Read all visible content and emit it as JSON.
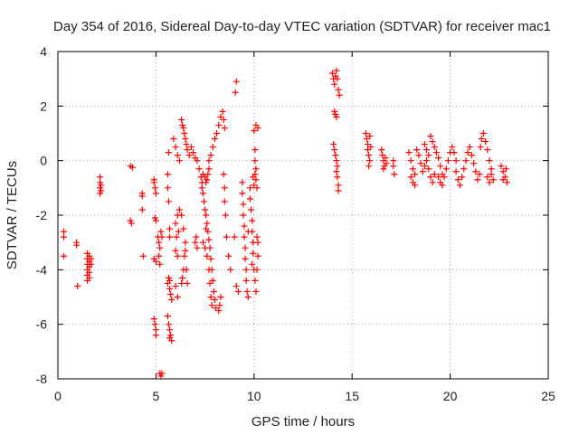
{
  "chart_data": {
    "type": "scatter",
    "title": "Day 354 of 2016, Sidereal Day-to-day VTEC variation (SDTVAR) for receiver mac1",
    "xlabel": "GPS time / hours",
    "ylabel": "SDTVAR / TECUs",
    "xlim": [
      0,
      25
    ],
    "ylim": [
      -8,
      4
    ],
    "xticks": [
      0,
      5,
      10,
      15,
      20,
      25
    ],
    "yticks": [
      -8,
      -6,
      -4,
      -2,
      0,
      2,
      4
    ],
    "grid": true,
    "marker": "+",
    "color": "#ff0000",
    "series": [
      {
        "name": "SDTVAR",
        "points": [
          [
            0.3,
            -2.6
          ],
          [
            0.3,
            -2.8
          ],
          [
            0.3,
            -3.5
          ],
          [
            0.95,
            -3.0
          ],
          [
            0.95,
            -3.1
          ],
          [
            1.0,
            -4.6
          ],
          [
            1.5,
            -3.4
          ],
          [
            1.5,
            -3.6
          ],
          [
            1.5,
            -3.8
          ],
          [
            1.5,
            -4.0
          ],
          [
            1.5,
            -4.2
          ],
          [
            1.5,
            -4.4
          ],
          [
            1.6,
            -3.5
          ],
          [
            1.6,
            -3.7
          ],
          [
            1.6,
            -3.9
          ],
          [
            1.6,
            -4.1
          ],
          [
            1.6,
            -4.3
          ],
          [
            1.7,
            -3.6
          ],
          [
            1.7,
            -3.8
          ],
          [
            2.15,
            -0.6
          ],
          [
            2.15,
            -0.8
          ],
          [
            2.15,
            -1.0
          ],
          [
            2.15,
            -1.2
          ],
          [
            2.2,
            -0.9
          ],
          [
            2.2,
            -1.1
          ],
          [
            3.7,
            -0.2
          ],
          [
            3.8,
            -0.25
          ],
          [
            3.7,
            -2.2
          ],
          [
            3.75,
            -2.3
          ],
          [
            4.3,
            -1.2
          ],
          [
            4.3,
            -1.3
          ],
          [
            4.3,
            -1.8
          ],
          [
            4.35,
            -3.5
          ],
          [
            4.9,
            -0.7
          ],
          [
            4.9,
            -0.8
          ],
          [
            4.95,
            -1.0
          ],
          [
            5.0,
            -1.2
          ],
          [
            4.95,
            -2.1
          ],
          [
            5.0,
            -2.2
          ],
          [
            4.9,
            -3.6
          ],
          [
            5.0,
            -3.7
          ],
          [
            4.9,
            -5.8
          ],
          [
            4.95,
            -6.0
          ],
          [
            5.0,
            -6.2
          ],
          [
            5.0,
            -6.4
          ],
          [
            5.1,
            -2.8
          ],
          [
            5.15,
            -3.0
          ],
          [
            5.2,
            -3.2
          ],
          [
            5.15,
            -3.5
          ],
          [
            5.2,
            -3.8
          ],
          [
            5.25,
            -2.6
          ],
          [
            5.3,
            -2.8
          ],
          [
            5.2,
            -7.8
          ],
          [
            5.25,
            -7.9
          ],
          [
            5.3,
            -7.8
          ],
          [
            5.6,
            -0.5
          ],
          [
            5.6,
            -1.0
          ],
          [
            5.65,
            -1.5
          ],
          [
            5.7,
            -2.8
          ],
          [
            5.7,
            -2.5
          ],
          [
            5.65,
            0.3
          ],
          [
            5.6,
            -4.5
          ],
          [
            5.7,
            -4.7
          ],
          [
            5.75,
            -4.9
          ],
          [
            5.8,
            -5.1
          ],
          [
            5.7,
            -4.4
          ],
          [
            5.65,
            -4.3
          ],
          [
            5.6,
            -5.7
          ],
          [
            5.65,
            -6.0
          ],
          [
            5.7,
            -6.2
          ],
          [
            5.75,
            -6.4
          ],
          [
            5.8,
            -6.6
          ],
          [
            5.7,
            -6.5
          ],
          [
            5.9,
            0.8
          ],
          [
            6.0,
            0.5
          ],
          [
            6.1,
            0.2
          ],
          [
            6.2,
            0.0
          ],
          [
            6.0,
            -2.3
          ],
          [
            6.1,
            -2.0
          ],
          [
            6.2,
            -1.8
          ],
          [
            6.3,
            -2.0
          ],
          [
            6.4,
            -2.5
          ],
          [
            6.5,
            -3.0
          ],
          [
            6.0,
            -3.3
          ],
          [
            6.1,
            -3.5
          ],
          [
            6.0,
            -4.6
          ],
          [
            6.1,
            -5.0
          ],
          [
            6.05,
            -2.8
          ],
          [
            6.15,
            -2.6
          ],
          [
            6.3,
            1.5
          ],
          [
            6.35,
            1.3
          ],
          [
            6.4,
            1.2
          ],
          [
            6.45,
            1.0
          ],
          [
            6.5,
            0.8
          ],
          [
            6.55,
            0.6
          ],
          [
            6.6,
            0.4
          ],
          [
            6.7,
            0.2
          ],
          [
            6.3,
            -4.5
          ],
          [
            6.35,
            -4.3
          ],
          [
            6.4,
            -4.0
          ],
          [
            6.45,
            -3.5
          ],
          [
            6.5,
            -3.3
          ],
          [
            6.55,
            -4.0
          ],
          [
            6.6,
            -4.5
          ],
          [
            6.8,
            0.5
          ],
          [
            6.9,
            0.3
          ],
          [
            7.0,
            0.1
          ],
          [
            7.1,
            0.0
          ],
          [
            7.2,
            -0.3
          ],
          [
            7.0,
            -3.0
          ],
          [
            7.05,
            -2.8
          ],
          [
            7.1,
            -3.2
          ],
          [
            7.3,
            -0.6
          ],
          [
            7.35,
            -0.8
          ],
          [
            7.4,
            -0.5
          ],
          [
            7.5,
            -0.6
          ],
          [
            7.55,
            -0.8
          ],
          [
            7.6,
            -0.7
          ],
          [
            7.65,
            -0.5
          ],
          [
            7.7,
            -0.3
          ],
          [
            7.35,
            -1.0
          ],
          [
            7.4,
            -1.2
          ],
          [
            7.45,
            -1.5
          ],
          [
            7.5,
            -1.8
          ],
          [
            7.55,
            -2.0
          ],
          [
            7.6,
            -2.3
          ],
          [
            7.65,
            -2.6
          ],
          [
            7.7,
            -2.9
          ],
          [
            7.75,
            -3.2
          ],
          [
            7.8,
            -3.6
          ],
          [
            7.85,
            -4.0
          ],
          [
            7.9,
            -4.4
          ],
          [
            7.95,
            -4.8
          ],
          [
            8.0,
            -5.1
          ],
          [
            8.05,
            -5.4
          ],
          [
            7.4,
            -3.0
          ],
          [
            7.5,
            -3.2
          ],
          [
            7.55,
            -2.5
          ],
          [
            7.6,
            -3.5
          ],
          [
            7.7,
            -4.0
          ],
          [
            7.75,
            -4.5
          ],
          [
            7.8,
            -5.0
          ],
          [
            7.85,
            -5.3
          ],
          [
            7.7,
            0.0
          ],
          [
            7.8,
            0.2
          ],
          [
            7.9,
            0.5
          ],
          [
            8.0,
            0.8
          ],
          [
            8.1,
            1.0
          ],
          [
            8.2,
            1.3
          ],
          [
            8.3,
            1.6
          ],
          [
            8.4,
            1.8
          ],
          [
            8.45,
            1.5
          ],
          [
            8.5,
            1.2
          ],
          [
            8.2,
            -5.5
          ],
          [
            8.25,
            -5.3
          ],
          [
            8.3,
            -5.0
          ],
          [
            8.6,
            -2.8
          ],
          [
            8.7,
            -3.5
          ],
          [
            8.8,
            -4.0
          ],
          [
            8.55,
            -2.0
          ],
          [
            8.5,
            -1.5
          ],
          [
            8.5,
            -1.0
          ],
          [
            8.45,
            -0.5
          ],
          [
            9.1,
            2.9
          ],
          [
            9.05,
            2.5
          ],
          [
            9.0,
            -2.8
          ],
          [
            9.1,
            -4.6
          ],
          [
            9.2,
            -4.8
          ],
          [
            9.4,
            -0.8
          ],
          [
            9.4,
            -1.2
          ],
          [
            9.45,
            -1.6
          ],
          [
            9.45,
            -2.0
          ],
          [
            9.5,
            -2.4
          ],
          [
            9.5,
            -2.8
          ],
          [
            9.55,
            -3.2
          ],
          [
            9.55,
            -3.6
          ],
          [
            9.6,
            -4.0
          ],
          [
            9.6,
            -4.4
          ],
          [
            9.65,
            -4.8
          ],
          [
            9.7,
            -5.0
          ],
          [
            9.7,
            -2.6
          ],
          [
            9.8,
            -1.0
          ],
          [
            9.8,
            -1.4
          ],
          [
            9.85,
            -1.8
          ],
          [
            9.9,
            -2.2
          ],
          [
            9.9,
            -2.6
          ],
          [
            9.95,
            -3.0
          ],
          [
            9.95,
            -3.4
          ],
          [
            9.9,
            -3.8
          ],
          [
            10.0,
            -4.0
          ],
          [
            10.05,
            -4.4
          ],
          [
            10.1,
            -4.8
          ],
          [
            9.95,
            -0.6
          ],
          [
            10.0,
            -0.9
          ],
          [
            10.05,
            -0.5
          ],
          [
            10.1,
            -0.7
          ],
          [
            10.15,
            -1.0
          ],
          [
            10.05,
            0.4
          ],
          [
            10.05,
            0.0
          ],
          [
            10.1,
            -0.3
          ],
          [
            10.0,
            1.1
          ],
          [
            10.1,
            1.3
          ],
          [
            10.2,
            1.2
          ],
          [
            10.15,
            -2.8
          ],
          [
            10.2,
            -3.0
          ],
          [
            10.2,
            -3.5
          ],
          [
            10.15,
            -4.0
          ],
          [
            14.0,
            3.2
          ],
          [
            14.05,
            3.0
          ],
          [
            14.1,
            2.8
          ],
          [
            14.15,
            3.1
          ],
          [
            14.2,
            3.3
          ],
          [
            14.25,
            3.0
          ],
          [
            14.3,
            2.6
          ],
          [
            14.35,
            2.4
          ],
          [
            14.1,
            1.8
          ],
          [
            14.15,
            1.7
          ],
          [
            14.2,
            1.6
          ],
          [
            14.05,
            0.6
          ],
          [
            14.1,
            0.4
          ],
          [
            14.15,
            0.2
          ],
          [
            14.2,
            0.0
          ],
          [
            14.25,
            -0.2
          ],
          [
            14.2,
            -0.4
          ],
          [
            14.25,
            -0.6
          ],
          [
            14.3,
            -0.9
          ],
          [
            14.3,
            -1.1
          ],
          [
            15.7,
            1.0
          ],
          [
            15.75,
            0.8
          ],
          [
            15.8,
            0.6
          ],
          [
            15.8,
            0.4
          ],
          [
            15.85,
            0.2
          ],
          [
            15.9,
            0.0
          ],
          [
            15.85,
            -0.2
          ],
          [
            15.9,
            0.9
          ],
          [
            15.95,
            0.5
          ],
          [
            16.5,
            0.4
          ],
          [
            16.55,
            0.2
          ],
          [
            16.6,
            0.0
          ],
          [
            16.65,
            -0.2
          ],
          [
            16.6,
            -0.3
          ],
          [
            16.7,
            0.1
          ],
          [
            16.75,
            -0.1
          ],
          [
            17.1,
            0.0
          ],
          [
            17.1,
            -0.2
          ],
          [
            17.15,
            -0.5
          ],
          [
            17.9,
            0.3
          ],
          [
            18.0,
            0.0
          ],
          [
            18.1,
            -0.3
          ],
          [
            18.0,
            -0.6
          ],
          [
            18.1,
            -0.8
          ],
          [
            18.2,
            -0.9
          ],
          [
            18.2,
            -0.5
          ],
          [
            18.3,
            0.4
          ],
          [
            18.4,
            0.2
          ],
          [
            18.5,
            -0.1
          ],
          [
            18.6,
            -0.4
          ],
          [
            18.7,
            -0.2
          ],
          [
            18.8,
            0.0
          ],
          [
            18.9,
            -0.3
          ],
          [
            19.0,
            -0.6
          ],
          [
            19.1,
            -0.8
          ],
          [
            19.2,
            -0.5
          ],
          [
            18.7,
            0.6
          ],
          [
            18.8,
            0.4
          ],
          [
            18.9,
            0.2
          ],
          [
            19.0,
            0.9
          ],
          [
            19.1,
            0.7
          ],
          [
            19.2,
            0.5
          ],
          [
            19.3,
            0.3
          ],
          [
            19.4,
            0.1
          ],
          [
            19.5,
            -0.2
          ],
          [
            19.6,
            -0.5
          ],
          [
            19.4,
            -0.6
          ],
          [
            19.5,
            -0.8
          ],
          [
            19.6,
            -0.9
          ],
          [
            19.7,
            -0.6
          ],
          [
            19.8,
            -0.3
          ],
          [
            19.9,
            0.0
          ],
          [
            20.0,
            0.3
          ],
          [
            20.1,
            0.5
          ],
          [
            20.2,
            0.3
          ],
          [
            20.3,
            0.0
          ],
          [
            20.3,
            -0.4
          ],
          [
            20.4,
            -0.7
          ],
          [
            20.5,
            -0.9
          ],
          [
            20.6,
            -0.6
          ],
          [
            20.7,
            -0.3
          ],
          [
            20.8,
            0.0
          ],
          [
            20.9,
            0.3
          ],
          [
            21.0,
            0.5
          ],
          [
            21.1,
            0.2
          ],
          [
            21.2,
            -0.1
          ],
          [
            21.3,
            -0.4
          ],
          [
            21.4,
            -0.7
          ],
          [
            21.5,
            -0.5
          ],
          [
            21.55,
            0.5
          ],
          [
            21.6,
            0.8
          ],
          [
            21.7,
            1.0
          ],
          [
            21.8,
            0.7
          ],
          [
            21.9,
            0.4
          ],
          [
            22.0,
            0.0
          ],
          [
            22.1,
            -0.3
          ],
          [
            21.9,
            -0.6
          ],
          [
            22.0,
            -0.8
          ],
          [
            22.1,
            -0.5
          ],
          [
            22.2,
            -0.7
          ],
          [
            22.6,
            -0.2
          ],
          [
            22.7,
            -0.4
          ],
          [
            22.8,
            -0.6
          ],
          [
            22.9,
            -0.8
          ],
          [
            22.7,
            -0.7
          ],
          [
            22.85,
            -0.3
          ]
        ]
      }
    ]
  }
}
